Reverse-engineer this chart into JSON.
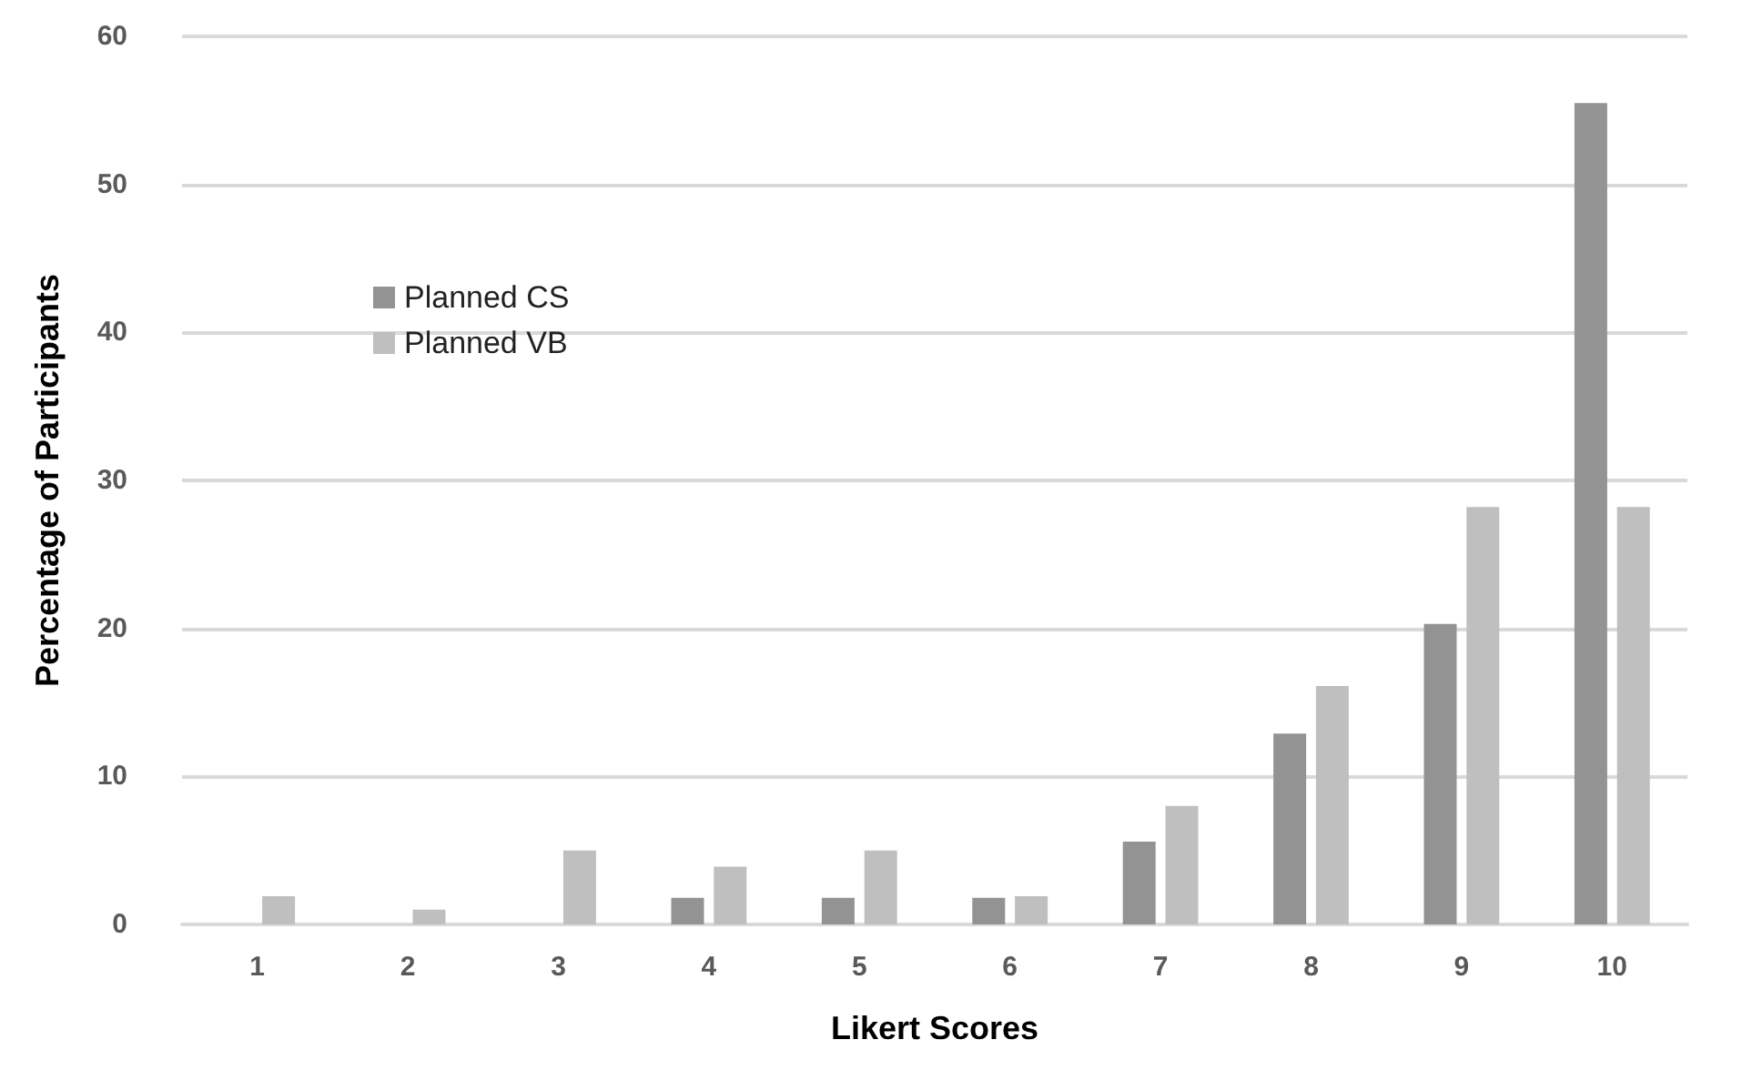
{
  "chart_data": {
    "type": "bar",
    "xlabel": "Likert Scores",
    "ylabel": "Percentage of Participants",
    "categories": [
      "1",
      "2",
      "3",
      "4",
      "5",
      "6",
      "7",
      "8",
      "9",
      "10"
    ],
    "series": [
      {
        "name": "Planned CS",
        "color": "#939393",
        "values": [
          0,
          0,
          0,
          1.8,
          1.8,
          1.8,
          5.6,
          12.9,
          20.3,
          55.5
        ]
      },
      {
        "name": "Planned VB",
        "color": "#bfbfbf",
        "values": [
          1.9,
          1.0,
          5.0,
          3.9,
          5.0,
          1.9,
          8.0,
          16.1,
          28.2,
          28.2
        ]
      }
    ],
    "ylim": [
      0,
      60
    ],
    "yticks": [
      0,
      10,
      20,
      30,
      40,
      50,
      60
    ],
    "grid": "y",
    "legend": "top left"
  }
}
